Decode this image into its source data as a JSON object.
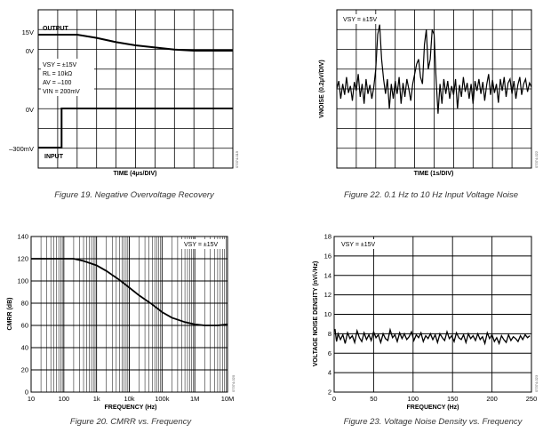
{
  "chart_data": [
    {
      "type": "line",
      "caption": "Figure 19. Negative Overvoltage Recovery",
      "xlabel": "TIME (4μs/DIV)",
      "ylabels": [
        "15V",
        "0V",
        "0V",
        "–300mV"
      ],
      "series": [
        {
          "name": "OUTPUT",
          "x": [
            0,
            1,
            2,
            3,
            4,
            5,
            6,
            7,
            8,
            9,
            10
          ],
          "y": [
            15,
            15,
            15,
            12,
            8,
            5,
            3,
            1,
            0,
            0,
            0
          ]
        },
        {
          "name": "INPUT",
          "x": [
            0,
            1.2,
            1.2,
            10
          ],
          "y": [
            -300,
            -300,
            0,
            0
          ]
        }
      ],
      "conditions": [
        "VSY = ±15V",
        "RL = 10kΩ",
        "AV = –100",
        "VIN = 200mV"
      ],
      "code": "07374-019"
    },
    {
      "type": "line",
      "caption": "Figure 22. 0.1 Hz to 10 Hz Input Voltage Noise",
      "xlabel": "TIME (1s/DIV)",
      "ylabel": "VNOISE (0.2μV/DIV)",
      "annotation": "VSY = ±15V",
      "series": [
        {
          "x": [
            0,
            0.1,
            0.2,
            0.3,
            0.4,
            0.5,
            0.6,
            0.7,
            0.8,
            0.9,
            1.0,
            1.1,
            1.2,
            1.3,
            1.4,
            1.5,
            1.6,
            1.7,
            1.8,
            1.9,
            2.0,
            2.1,
            2.2,
            2.3,
            2.4,
            2.5,
            2.6,
            2.7,
            2.8,
            2.9,
            3.0,
            3.1,
            3.2,
            3.3,
            3.4,
            3.5,
            3.6,
            3.7,
            3.8,
            3.9,
            4.0,
            4.1,
            4.2,
            4.3,
            4.4,
            4.5,
            4.6,
            4.7,
            4.8,
            4.9,
            5.0,
            5.1,
            5.2,
            5.3,
            5.4,
            5.5,
            5.6,
            5.7,
            5.8,
            5.9,
            6.0,
            6.1,
            6.2,
            6.3,
            6.4,
            6.5,
            6.6,
            6.7,
            6.8,
            6.9,
            7.0,
            7.1,
            7.2,
            7.3,
            7.4,
            7.5,
            7.6,
            7.7,
            7.8,
            7.9,
            8.0,
            8.1,
            8.2,
            8.3,
            8.4,
            8.5,
            8.6,
            8.7,
            8.8,
            8.9,
            9.0,
            9.1,
            9.2,
            9.3,
            9.4,
            9.5,
            9.6,
            9.7,
            9.8,
            9.9,
            10.0
          ],
          "y": [
            0.0,
            0.08,
            -0.1,
            0.05,
            -0.06,
            0.12,
            -0.04,
            0.03,
            -0.12,
            0.07,
            -0.02,
            0.15,
            -0.08,
            0.05,
            -0.15,
            0.1,
            -0.05,
            0.04,
            -0.1,
            0.02,
            0.2,
            0.55,
            0.65,
            0.3,
            0.1,
            -0.05,
            0.1,
            -0.2,
            0.05,
            -0.1,
            0.08,
            -0.05,
            0.12,
            -0.15,
            0.06,
            -0.08,
            0.1,
            0.0,
            -0.12,
            0.05,
            0.15,
            0.25,
            0.3,
            0.12,
            0.05,
            0.45,
            0.6,
            0.2,
            0.3,
            0.6,
            0.55,
            0.1,
            -0.25,
            0.05,
            -0.15,
            0.1,
            -0.05,
            0.08,
            -0.1,
            0.03,
            -0.06,
            0.1,
            -0.2,
            0.04,
            -0.08,
            0.12,
            -0.03,
            0.06,
            -0.1,
            0.05,
            -0.15,
            0.08,
            -0.02,
            0.1,
            -0.05,
            0.07,
            -0.12,
            0.04,
            0.15,
            -0.06,
            0.09,
            -0.04,
            0.05,
            -0.14,
            0.1,
            -0.02,
            0.12,
            -0.08,
            0.06,
            0.1,
            -0.05,
            0.08,
            -0.1,
            0.04,
            0.12,
            -0.06,
            0.05,
            0.1,
            -0.03,
            0.06,
            0.02
          ]
        }
      ],
      "code": "07374-022"
    },
    {
      "type": "line",
      "caption": "Figure 20. CMRR vs. Frequency",
      "xlabel": "FREQUENCY (Hz)",
      "ylabel": "CMRR (dB)",
      "annotation": "VSY = ±15V",
      "xscale": "log",
      "xticks": [
        "10",
        "100",
        "1k",
        "10k",
        "100k",
        "1M",
        "10M"
      ],
      "yticks": [
        "0",
        "20",
        "40",
        "60",
        "80",
        "100",
        "120",
        "140"
      ],
      "xlim": [
        10,
        10000000
      ],
      "ylim": [
        0,
        140
      ],
      "series": [
        {
          "x": [
            10,
            100,
            200,
            400,
            1000,
            2000,
            5000,
            10000,
            20000,
            50000,
            100000,
            200000,
            500000,
            1000000,
            2000000,
            5000000,
            10000000
          ],
          "y": [
            120,
            120,
            120,
            118,
            114,
            109,
            101,
            94,
            87,
            79,
            72,
            67,
            63,
            61,
            60,
            60,
            61
          ]
        }
      ],
      "code": "07374-020"
    },
    {
      "type": "line",
      "caption": "Figure 23. Voltage Noise Density vs. Frequency",
      "xlabel": "FREQUENCY (Hz)",
      "ylabel": "VOLTAGE NOISE DENSITY (nV/√Hz)",
      "annotation": "VSY = ±15V",
      "xticks": [
        "0",
        "50",
        "100",
        "150",
        "200",
        "250"
      ],
      "yticks": [
        "2",
        "4",
        "6",
        "8",
        "10",
        "12",
        "14",
        "16",
        "18"
      ],
      "xlim": [
        0,
        250
      ],
      "ylim": [
        2,
        18
      ],
      "series": [
        {
          "x": [
            1,
            3,
            5,
            8,
            11,
            14,
            17,
            20,
            23,
            26,
            29,
            32,
            35,
            38,
            41,
            44,
            47,
            50,
            53,
            56,
            59,
            62,
            65,
            68,
            71,
            74,
            77,
            80,
            83,
            86,
            89,
            92,
            95,
            98,
            101,
            104,
            107,
            110,
            113,
            116,
            119,
            122,
            125,
            128,
            131,
            134,
            137,
            140,
            143,
            146,
            149,
            152,
            155,
            158,
            161,
            164,
            167,
            170,
            173,
            176,
            179,
            182,
            185,
            188,
            191,
            194,
            197,
            200,
            203,
            206,
            209,
            212,
            215,
            218,
            221,
            224,
            227,
            230,
            233,
            236,
            239,
            242,
            245,
            248
          ],
          "y": [
            8.5,
            7.2,
            8.0,
            7.4,
            7.9,
            7.0,
            8.1,
            7.5,
            7.8,
            7.1,
            8.3,
            7.6,
            7.2,
            8.1,
            7.4,
            7.9,
            7.3,
            8.2,
            7.6,
            7.9,
            7.1,
            8.0,
            7.5,
            7.3,
            8.4,
            7.6,
            7.9,
            7.2,
            8.1,
            7.5,
            8.0,
            7.4,
            7.7,
            8.2,
            7.3,
            7.9,
            7.6,
            8.1,
            7.2,
            7.8,
            7.5,
            8.0,
            7.4,
            7.9,
            7.1,
            8.0,
            7.6,
            7.3,
            8.2,
            7.5,
            7.8,
            7.2,
            8.1,
            7.6,
            7.4,
            7.9,
            7.1,
            8.0,
            7.5,
            7.8,
            7.3,
            8.0,
            7.4,
            7.7,
            7.0,
            8.1,
            7.5,
            7.9,
            7.2,
            7.6,
            7.0,
            7.8,
            7.4,
            7.1,
            7.9,
            7.3,
            7.7,
            7.5,
            7.2,
            7.8,
            7.4,
            7.9,
            7.6,
            7.8
          ]
        }
      ],
      "code": "07374-023"
    }
  ]
}
